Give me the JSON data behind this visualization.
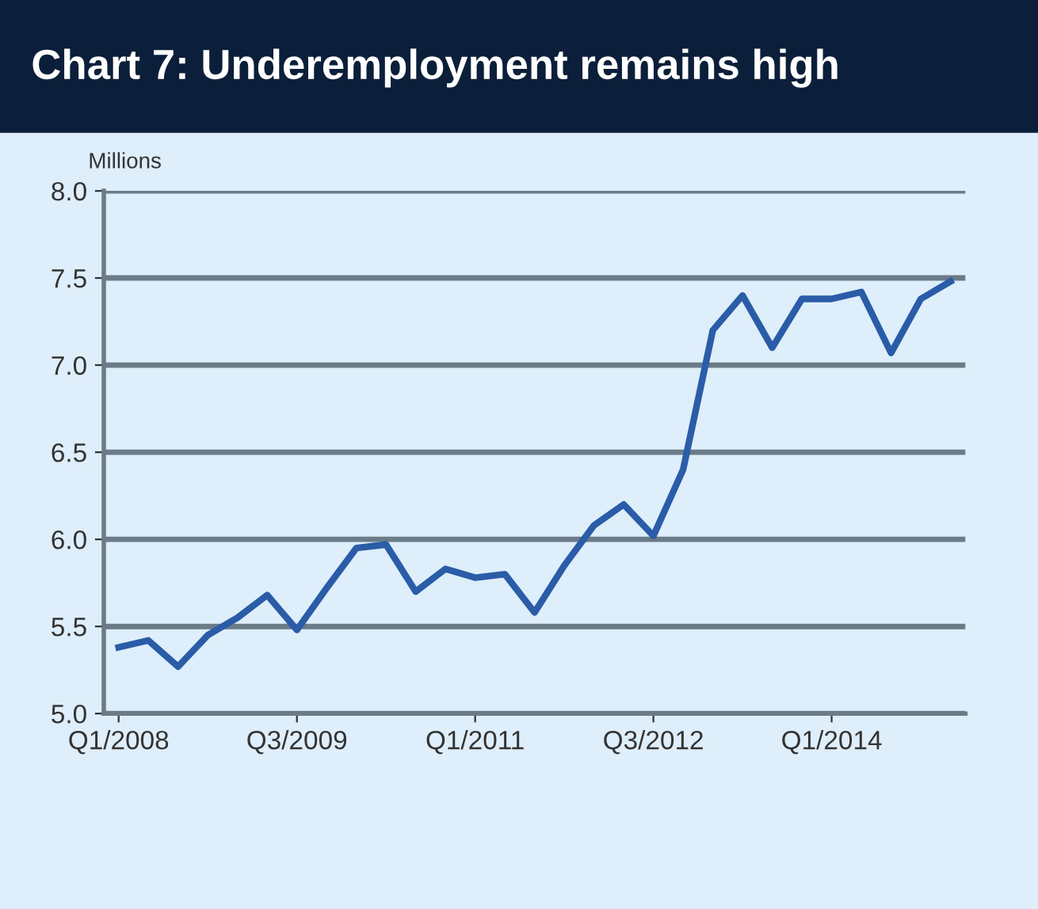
{
  "chart_data": {
    "type": "line",
    "title": "Chart 7: Underemployment remains high",
    "ylabel": "Millions",
    "categories": [
      "Q1/2008",
      null,
      null,
      null,
      null,
      null,
      "Q3/2009",
      null,
      null,
      null,
      null,
      null,
      "Q1/2011",
      null,
      null,
      null,
      null,
      null,
      "Q3/2012",
      null,
      null,
      null,
      null,
      null,
      "Q1/2014",
      null,
      null,
      null,
      null
    ],
    "series": [
      {
        "color": "#2a5ca8",
        "values": [
          5.38,
          5.42,
          5.27,
          5.45,
          5.55,
          5.68,
          5.48,
          5.72,
          5.95,
          5.97,
          5.7,
          5.83,
          5.78,
          5.8,
          5.58,
          5.85,
          6.08,
          6.2,
          6.02,
          6.4,
          7.2,
          7.4,
          7.1,
          7.38,
          7.38,
          7.42,
          7.07,
          7.38,
          7.48
        ]
      }
    ],
    "ylim": [
      5.0,
      8.0
    ],
    "yticks": [
      {
        "value": 5.0,
        "label": "5.0"
      },
      {
        "value": 5.5,
        "label": "5.5"
      },
      {
        "value": 6.0,
        "label": "6.0"
      },
      {
        "value": 6.5,
        "label": "6.5"
      },
      {
        "value": 7.0,
        "label": "7.0"
      },
      {
        "value": 7.5,
        "label": "7.5"
      },
      {
        "value": 8.0,
        "label": "8.0"
      }
    ],
    "grid": "y",
    "legend": false,
    "marker": "none",
    "line_style": "solid"
  }
}
